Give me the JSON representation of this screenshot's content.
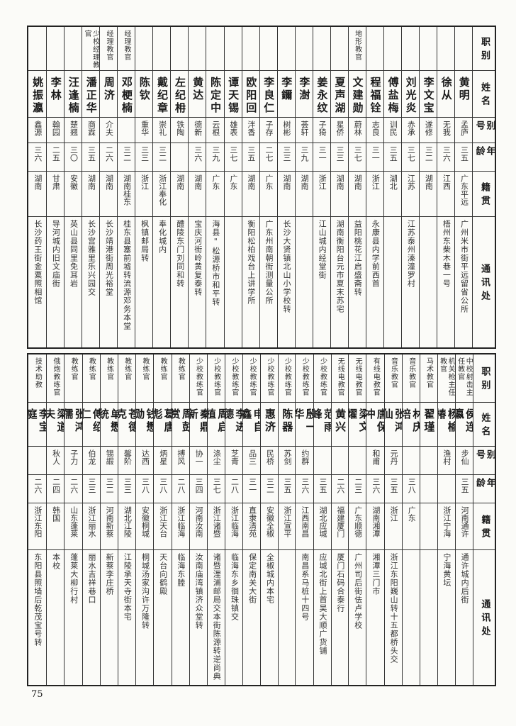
{
  "headers": [
    "职别",
    "姓名",
    "别号",
    "年龄",
    "籍贯",
    "通讯处"
  ],
  "page_number": "75",
  "top_table": [
    {
      "role": "",
      "name": "黄明",
      "alias": "孟庐",
      "age": "三五",
      "origin": "广东平远",
      "address": "广州米市街平远留省公所"
    },
    {
      "role": "",
      "name": "徐从",
      "alias": "无我",
      "age": "三六",
      "origin": "江西",
      "address": "梧州东柴木巷一号"
    },
    {
      "role": "",
      "name": "李文宝",
      "alias": "遂修",
      "age": "三二",
      "origin": "湖南",
      "address": ""
    },
    {
      "role": "",
      "name": "刘光炎",
      "alias": "赤承",
      "age": "三七",
      "origin": "江苏",
      "address": "江苏泰州溱潼罗村"
    },
    {
      "role": "",
      "name": "傅盐梅",
      "alias": "训民",
      "age": "三五",
      "origin": "湖北",
      "address": ""
    },
    {
      "role": "",
      "name": "程福铨",
      "alias": "志良",
      "age": "三一",
      "origin": "浙江",
      "address": "永康县内学前西首"
    },
    {
      "role": "地形教官",
      "name": "文建勋",
      "alias": "蔚林",
      "age": "三七",
      "origin": "湖南",
      "address": "益阳桃花江启盛斋转"
    },
    {
      "role": "",
      "name": "夏声湖",
      "alias": "星侨",
      "age": "三三",
      "origin": "湖南",
      "address": "湖南衡阳台元市夏末苏宅"
    },
    {
      "role": "",
      "name": "姜永纹",
      "alias": "子猗",
      "age": "三一",
      "origin": "浙江",
      "address": "江山城内经堂街"
    },
    {
      "role": "",
      "name": "李澍",
      "alias": "荟轩",
      "age": "三九",
      "origin": "湖南",
      "address": ""
    },
    {
      "role": "",
      "name": "李鑈",
      "alias": "树彬",
      "age": "三三",
      "origin": "湖南",
      "address": "长沙大贤镇北山小学校转"
    },
    {
      "role": "",
      "name": "李良仁",
      "alias": "子存",
      "age": "二七",
      "origin": "广东",
      "address": "广东州南朝街测量公所"
    },
    {
      "role": "",
      "name": "欧阳回",
      "alias": "泮香",
      "age": "三五",
      "origin": "湖南",
      "address": "衡阳松柏戏台上讲学所"
    },
    {
      "role": "",
      "name": "谭天锡",
      "alias": "雄表",
      "age": "三七",
      "origin": "广东",
      "address": ""
    },
    {
      "role": "",
      "name": "陈定中",
      "alias": "云根",
      "age": "三九",
      "origin": "广东",
      "address": "海县\"松源桥市和平转"
    },
    {
      "role": "",
      "name": "黄达",
      "alias": "德新",
      "age": "三六",
      "origin": "湖南",
      "address": "宝庆河街岭黄复泰转"
    },
    {
      "role": "",
      "name": "左纪枏",
      "alias": "铁陶",
      "age": "",
      "origin": "湖南",
      "address": "醴陵东门刘同和转"
    },
    {
      "role": "",
      "name": "戴纪章",
      "alias": "崇礼",
      "age": "三二",
      "origin": "浙江奉化",
      "address": "奉化城内"
    },
    {
      "role": "",
      "name": "陈钦",
      "alias": "重华",
      "age": "三三",
      "origin": "浙江",
      "address": "枫镇邮局转"
    },
    {
      "role": "经理教官",
      "name": "邓梗楠",
      "alias": "",
      "age": "三二",
      "origin": "湖南桂东",
      "address": "桂东县塞前墟转流源邓务本堂"
    },
    {
      "role": "经理教官",
      "name": "周济",
      "alias": "介夫",
      "age": "二六",
      "origin": "湖南",
      "address": "长沙靖港街周光裕堂"
    },
    {
      "role": "少校经理教官",
      "name": "潘正华",
      "alias": "商霖",
      "age": "三五",
      "origin": "湖南",
      "address": "长沙宫雅里乐兴园交"
    },
    {
      "role": "",
      "name": "汪逢楠",
      "alias": "楚翘",
      "age": "三〇",
      "origin": "安徽",
      "address": "英山县同里免耳岩"
    },
    {
      "role": "",
      "name": "李林",
      "alias": "翰园",
      "age": "二五",
      "origin": "甘肃",
      "address": "导河城内旧文庙街"
    },
    {
      "role": "",
      "name": "姚振瀛",
      "alias": "鑫源",
      "age": "三六",
      "origin": "湖南",
      "address": "长沙药王街金粟照相馆"
    }
  ],
  "bottom_table": [
    {
      "role": "中校射击主任教官",
      "name": "侯连瀛",
      "alias": "步仙",
      "age": "三五",
      "origin": "河南通许",
      "address": "通许城内后街"
    },
    {
      "role": "机关枪主任教官",
      "name": "杨榆椿",
      "alias": "渔村",
      "age": "",
      "origin": "浙江宁海",
      "address": "宁海黄坛"
    },
    {
      "role": "马术教官",
      "name": "翟瑾",
      "alias": "",
      "age": "",
      "origin": "",
      "address": ""
    },
    {
      "role": "音乐教官",
      "name": "林庆培",
      "alias": "",
      "age": "三八",
      "origin": "广东",
      "address": ""
    },
    {
      "role": "音乐教官",
      "name": "张鸿仙",
      "alias": "元丹",
      "age": "三五",
      "origin": "浙江",
      "address": "浙江东阳巍山转十五都桥头交"
    },
    {
      "role": "有线电教官",
      "name": "唐保冲",
      "alias": "和甫",
      "age": "三六",
      "origin": "湖南湘潭",
      "address": "湘潭三门市"
    },
    {
      "role": "无线电教官",
      "name": "梁文燿",
      "alias": "",
      "age": "二三",
      "origin": "广东顺德",
      "address": "广州司后街佉卢学校"
    },
    {
      "role": "无线电教官",
      "name": "黄兴",
      "alias": "",
      "age": "二六",
      "origin": "福建厦门",
      "address": "厦门石码合泰行"
    },
    {
      "role": "少校教练官",
      "name": "范雨峰",
      "alias": "",
      "age": "三五",
      "origin": "湖北应城",
      "address": "应城北街上首吴大顺广货铺"
    },
    {
      "role": "少校教练官",
      "name": "殷一华",
      "alias": "约群",
      "age": "三六",
      "origin": "江西南昌",
      "address": "南昌系马桩十四号"
    },
    {
      "role": "少校教练官",
      "name": "陈器",
      "alias": "苏剑",
      "age": "三五",
      "origin": "浙江宣平",
      "address": ""
    },
    {
      "role": "少校教练官",
      "name": "惠济",
      "alias": "民桥",
      "age": "三二",
      "origin": "安徽全椒",
      "address": "全椒城内本宅"
    },
    {
      "role": "少校教练官",
      "name": "申自鑫",
      "alias": "品三",
      "age": "三一",
      "origin": "直隶清苑",
      "address": "保定南关大街"
    },
    {
      "role": "少校教练官",
      "name": "李进德",
      "alias": "芝青",
      "age": "二八",
      "origin": "浙江临海",
      "address": "临海东乡徊珠镇交"
    },
    {
      "role": "少校教练官",
      "name": "周启植",
      "alias": "涤尘",
      "age": "三七",
      "origin": "浙江诸暨",
      "address": "诸暨浬浦邮局交本街陈源转逆尚典"
    },
    {
      "role": "少校教练官",
      "name": "秦鼎新",
      "alias": "协一",
      "age": "三四",
      "origin": "河南汝南",
      "address": "汝南庙湾镇济众堂转"
    },
    {
      "role": "教练官",
      "name": "周彭赏",
      "alias": "搏风",
      "age": "二八",
      "origin": "浙江临海",
      "address": "临海东塍"
    },
    {
      "role": "教练官",
      "name": "葛唐彪",
      "alias": "炳星",
      "age": "三八",
      "origin": "浙江天台",
      "address": "天台向鹤殿"
    },
    {
      "role": "教练官",
      "name": "钱懋勋",
      "alias": "达西",
      "age": "三八",
      "origin": "安徽桐城",
      "address": "桐城汤家沟许万隆转"
    },
    {
      "role": "教练官",
      "name": "苍德克",
      "alias": "馨阶",
      "age": "三三",
      "origin": "湖北江陵",
      "address": "江陵承天寺街本宅"
    },
    {
      "role": "教练官",
      "name": "单懋统",
      "alias": "锡嘏",
      "age": "三二",
      "origin": "河南新蔡",
      "address": "新蔡李庄桥"
    },
    {
      "role": "教练官",
      "name": "傅绍仁",
      "alias": "伯龙",
      "age": "三三",
      "origin": "浙江丽水",
      "address": "丽水吉祥巷口"
    },
    {
      "role": "教练官",
      "name": "张鸿儒",
      "alias": "子力",
      "age": "二六",
      "origin": "山东蓬莱",
      "address": "蓬莱大柳行村"
    },
    {
      "role": "俄炮教练官",
      "name": "梁道夫",
      "alias": "秋人",
      "age": "二四",
      "origin": "韩国",
      "address": "本校"
    },
    {
      "role": "技术助教",
      "name": "李宝庭",
      "alias": "",
      "age": "二六",
      "origin": "浙江东阳",
      "address": "东阳县照墙后乾茂宝号转"
    }
  ]
}
